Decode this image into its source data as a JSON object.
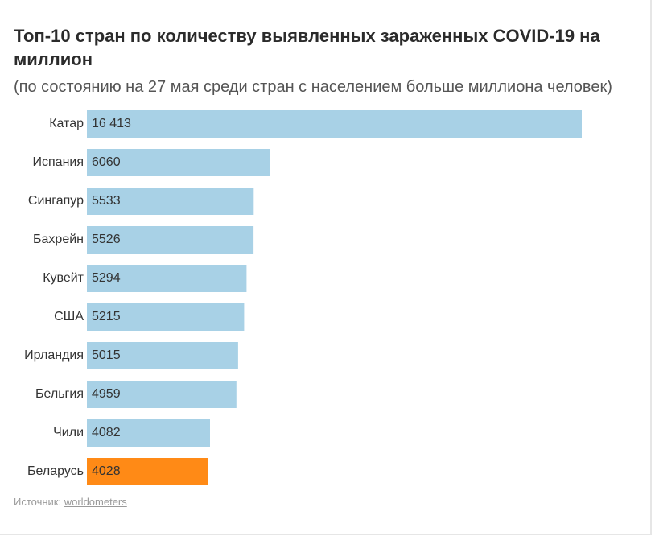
{
  "chart_data": {
    "type": "bar",
    "orientation": "horizontal",
    "title": "Топ-10 стран по количеству выявленных зараженных COVID-19 на миллион",
    "subtitle": "(по состоянию на 27 мая среди стран с населением больше миллиона человек)",
    "categories": [
      "Катар",
      "Испания",
      "Сингапур",
      "Бахрейн",
      "Кувейт",
      "США",
      "Ирландия",
      "Бельгия",
      "Чили",
      "Беларусь"
    ],
    "values": [
      16413,
      6060,
      5533,
      5526,
      5294,
      5215,
      5015,
      4959,
      4082,
      4028
    ],
    "value_labels": [
      "16 413",
      "6060",
      "5533",
      "5526",
      "5294",
      "5215",
      "5015",
      "4959",
      "4082",
      "4028"
    ],
    "highlight": "Беларусь",
    "xlim": [
      0,
      16413
    ],
    "xlabel": "",
    "ylabel": "",
    "grid": false
  },
  "colors": {
    "bar": "#a8d1e6",
    "highlight": "#ff8a16",
    "label": "#333333",
    "value_label": "#333333"
  },
  "source": {
    "label": "Источник:",
    "link_text": "worldometers"
  }
}
